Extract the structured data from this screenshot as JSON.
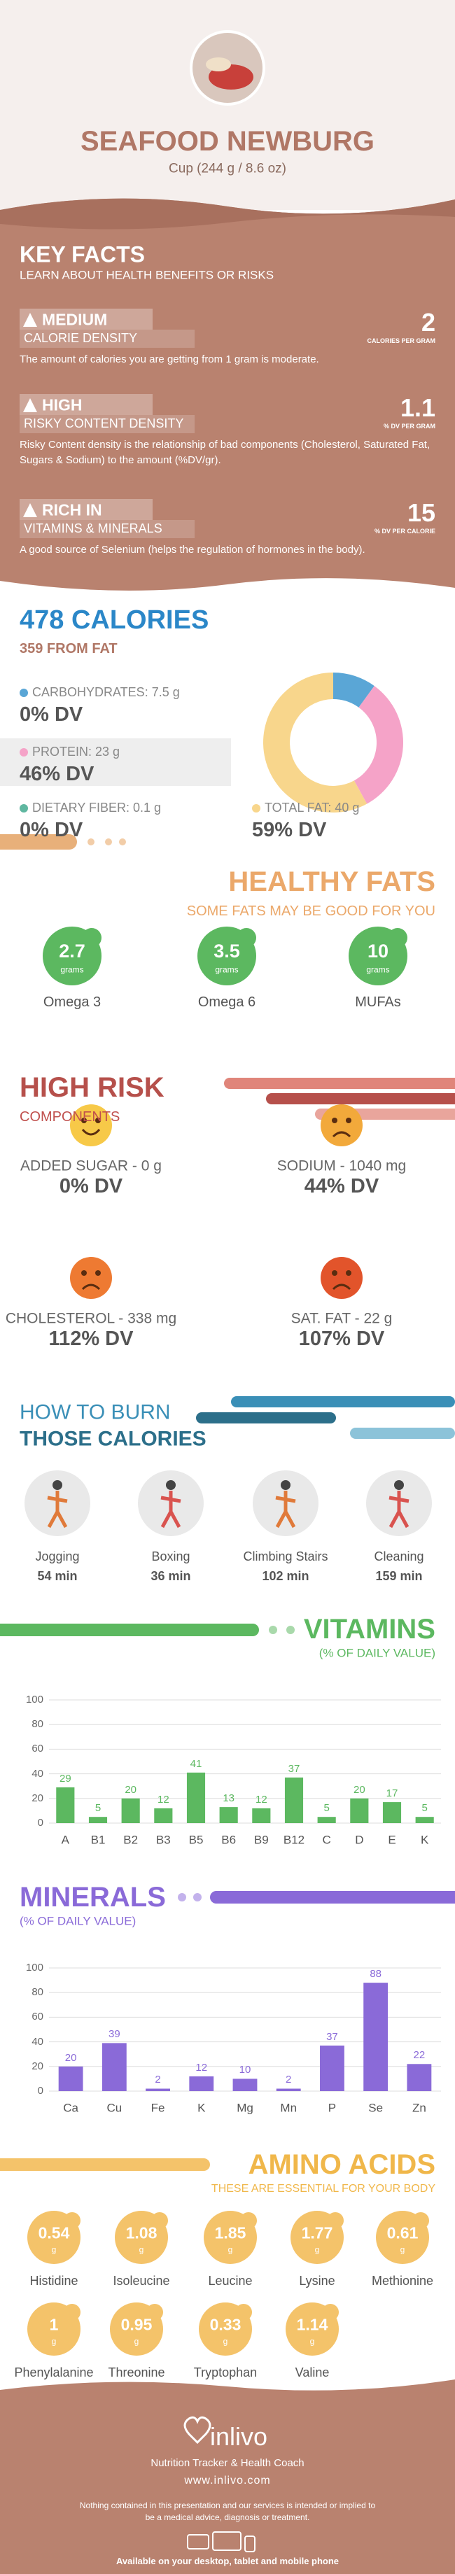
{
  "header": {
    "title": "SEAFOOD NEWBURG",
    "subtitle": "Cup (244 g / 8.6 oz)"
  },
  "key_facts": {
    "title": "KEY FACTS",
    "subtitle": "LEARN ABOUT HEALTH BENEFITS OR RISKS",
    "items": [
      {
        "level": "MEDIUM",
        "label": "CALORIE DENSITY",
        "value": 2,
        "unit": "CALORIES PER GRAM",
        "description": "The amount of calories you are getting from 1 gram is moderate."
      },
      {
        "level": "HIGH",
        "label": "RISKY CONTENT DENSITY",
        "value": 1.1,
        "unit": "% DV PER GRAM",
        "description": "Risky Content density is the relationship of bad components (Cholesterol, Saturated Fat, Sugars & Sodium) to the amount (%DV/gr)."
      },
      {
        "level": "RICH IN",
        "label": "VITAMINS & MINERALS",
        "value": 15,
        "unit": "% DV PER CALORIE",
        "description": "A good source of Selenium (helps the regulation of hormones in the body)."
      }
    ]
  },
  "calories": {
    "title": "478 CALORIES",
    "subtitle": "359 FROM FAT",
    "nutrients": [
      {
        "label": "CARBOHYDRATES: 7.5 g",
        "dv": "0% DV"
      },
      {
        "label": "PROTEIN: 23 g",
        "dv": "46% DV"
      },
      {
        "label": "DIETARY FIBER: 0.1 g",
        "dv": "0% DV"
      },
      {
        "label": "TOTAL FAT: 40 g",
        "dv": "59% DV"
      }
    ]
  },
  "healthy_fats": {
    "title": "HEALTHY FATS",
    "subtitle": "SOME FATS MAY BE GOOD FOR YOU",
    "unit": "grams",
    "items": [
      {
        "value": 2.7,
        "name": "Omega 3"
      },
      {
        "value": 3.5,
        "name": "Omega 6"
      },
      {
        "value": 10,
        "name": "MUFAs"
      }
    ]
  },
  "high_risk": {
    "title": "HIGH RISK",
    "subtitle": "COMPONENTS",
    "items": [
      {
        "label": "ADDED SUGAR - 0 g",
        "dv": "0% DV"
      },
      {
        "label": "SODIUM - 1040 mg",
        "dv": "44% DV"
      },
      {
        "label": "CHOLESTEROL - 338 mg",
        "dv": "112% DV"
      },
      {
        "label": "SAT. FAT - 22 g",
        "dv": "107% DV"
      }
    ]
  },
  "burn": {
    "title": "HOW TO BURN",
    "title2": "THOSE CALORIES",
    "activities": [
      {
        "name": "Jogging",
        "time": "54 min"
      },
      {
        "name": "Boxing",
        "time": "36 min"
      },
      {
        "name": "Climbing Stairs",
        "time": "102 min"
      },
      {
        "name": "Cleaning",
        "time": "159 min"
      }
    ]
  },
  "chart_data": [
    {
      "type": "donut",
      "values": [
        10,
        32,
        58
      ],
      "colors": [
        "#5aa6d6",
        "#f5a3c8",
        "#f8d68c"
      ]
    },
    {
      "type": "bar",
      "title": "VITAMINS",
      "subtitle": "(% OF DAILY VALUE)",
      "categories": [
        "A",
        "B1",
        "B2",
        "B3",
        "B5",
        "B6",
        "B9",
        "B12",
        "C",
        "D",
        "E",
        "K"
      ],
      "values": [
        29,
        5,
        20,
        12,
        41,
        13,
        12,
        37,
        5,
        20,
        17,
        5
      ],
      "color": "#5cb860",
      "ylim": [
        0,
        100
      ],
      "yticks": [
        0,
        20,
        40,
        60,
        80,
        100
      ],
      "grid": true
    },
    {
      "type": "bar",
      "title": "MINERALS",
      "subtitle": "(% OF DAILY VALUE)",
      "categories": [
        "Ca",
        "Cu",
        "Fe",
        "K",
        "Mg",
        "Mn",
        "P",
        "Se",
        "Zn"
      ],
      "values": [
        20,
        39,
        2,
        12,
        10,
        2,
        37,
        88,
        22
      ],
      "color": "#8a6ad8",
      "ylim": [
        0,
        100
      ],
      "yticks": [
        0,
        20,
        40,
        60,
        80,
        100
      ],
      "grid": true
    }
  ],
  "amino_acids": {
    "title": "AMINO ACIDS",
    "subtitle": "THESE ARE ESSENTIAL FOR YOUR BODY",
    "unit": "g",
    "items": [
      {
        "value": 0.54,
        "name": "Histidine"
      },
      {
        "value": 1.08,
        "name": "Isoleucine"
      },
      {
        "value": 1.85,
        "name": "Leucine"
      },
      {
        "value": 1.77,
        "name": "Lysine"
      },
      {
        "value": 0.61,
        "name": "Methionine"
      },
      {
        "value": 1,
        "name": "Phenylalanine"
      },
      {
        "value": 0.95,
        "name": "Threonine"
      },
      {
        "value": 0.33,
        "name": "Tryptophan"
      },
      {
        "value": 1.14,
        "name": "Valine"
      }
    ]
  },
  "footer": {
    "brand": "inlivo",
    "tagline": "Nutrition Tracker & Health Coach",
    "url": "www.inlivo.com",
    "disclaimer": "Nothing contained in this presentation and our services is intended or implied to be a medical advice, diagnosis or treatment.",
    "available": "Available on your desktop, tablet and mobile phone"
  }
}
